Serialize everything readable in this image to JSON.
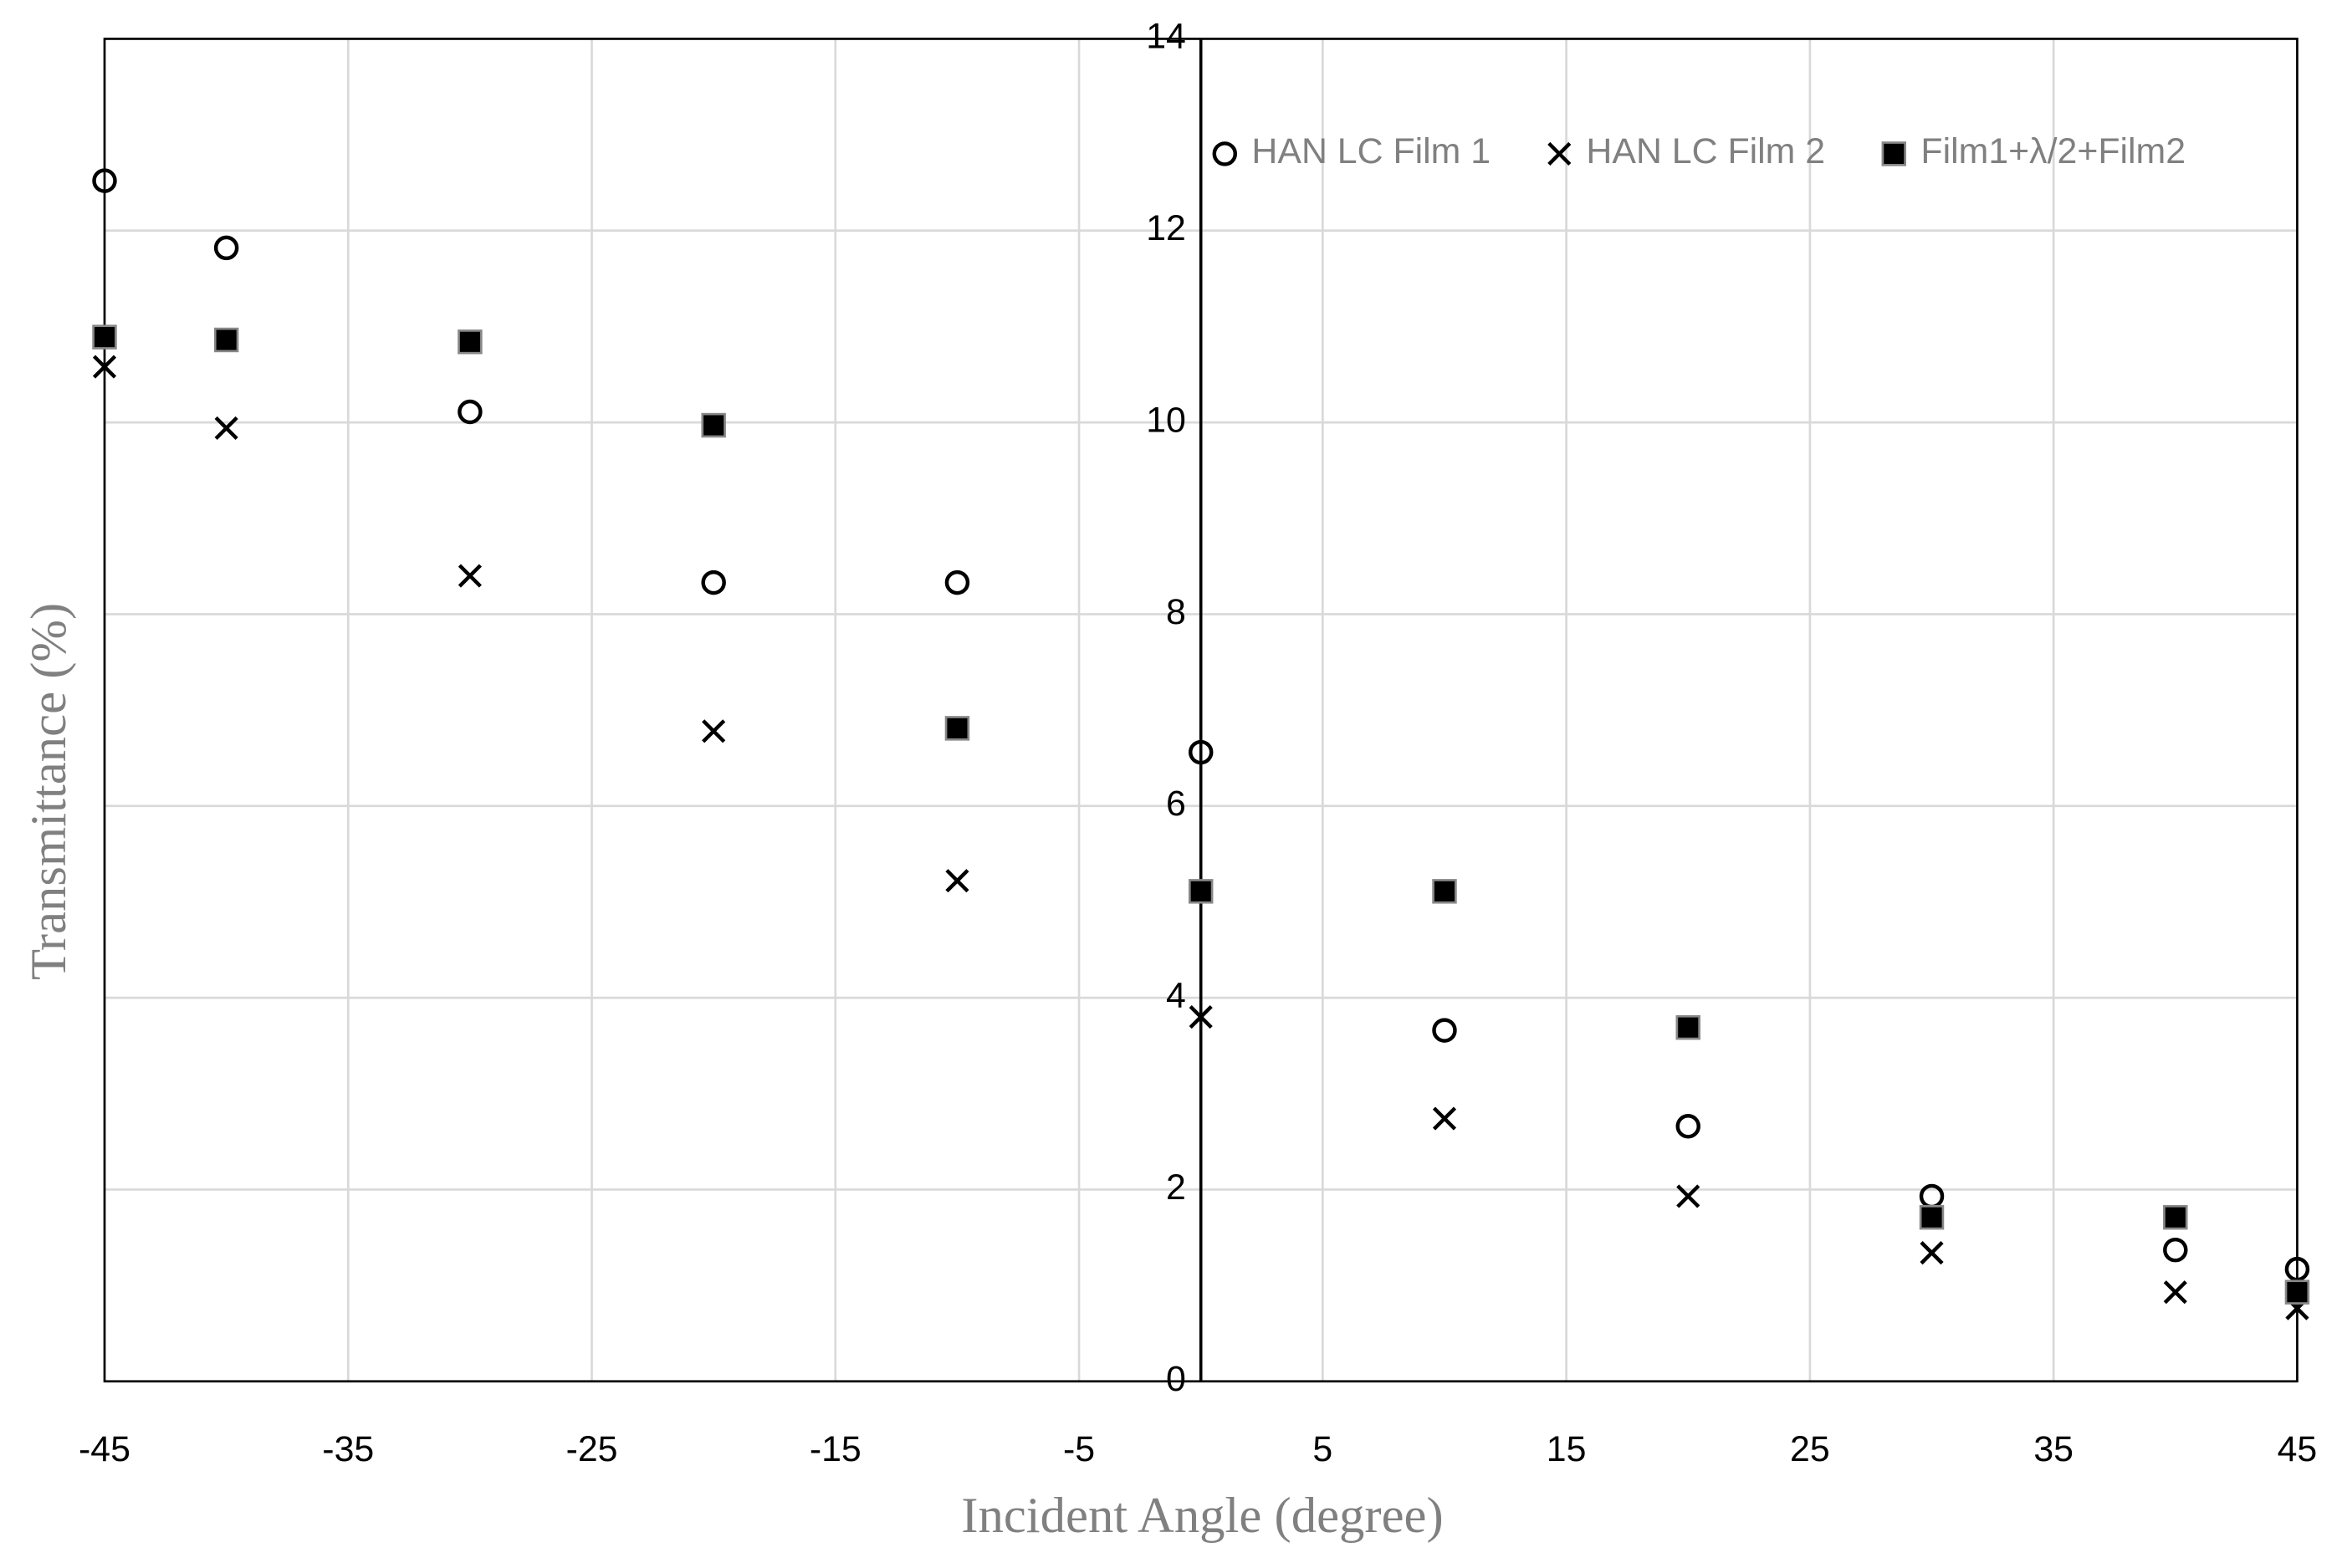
{
  "chart_data": {
    "type": "scatter",
    "x_label": "Incident Angle (degree)",
    "y_label": "Transmittance (%)",
    "x": [
      -45,
      -40,
      -30,
      -20,
      -10,
      0,
      10,
      20,
      30,
      40,
      45
    ],
    "series": [
      {
        "name": "HAN LC Film 1",
        "marker": "circle",
        "color": "#000000",
        "values": [
          12.52,
          11.82,
          10.11,
          8.33,
          8.33,
          6.56,
          3.66,
          2.66,
          1.93,
          1.37,
          1.17
        ]
      },
      {
        "name": "HAN LC Film 2",
        "marker": "x",
        "color": "#000000",
        "values": [
          10.58,
          9.94,
          8.4,
          6.78,
          5.22,
          3.8,
          2.74,
          1.93,
          1.34,
          0.93,
          0.76
        ]
      },
      {
        "name": "Film1+λ/2+Film2",
        "marker": "square",
        "color": "#000000",
        "values": [
          10.89,
          10.86,
          10.84,
          9.97,
          6.81,
          5.11,
          5.11,
          3.69,
          1.71,
          1.71,
          0.93
        ]
      }
    ],
    "xlim": [
      -45,
      45
    ],
    "xticks": [
      -45,
      -35,
      -25,
      -15,
      -5,
      5,
      15,
      25,
      35,
      45
    ],
    "ylim": [
      0,
      14
    ],
    "yticks": [
      0,
      2,
      4,
      6,
      8,
      10,
      12,
      14
    ],
    "grid": true,
    "legend": "top-right"
  }
}
